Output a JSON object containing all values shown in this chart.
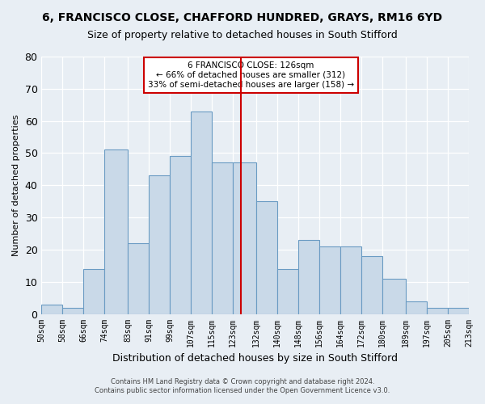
{
  "title": "6, FRANCISCO CLOSE, CHAFFORD HUNDRED, GRAYS, RM16 6YD",
  "subtitle": "Size of property relative to detached houses in South Stifford",
  "xlabel": "Distribution of detached houses by size in South Stifford",
  "ylabel": "Number of detached properties",
  "footer_line1": "Contains HM Land Registry data © Crown copyright and database right 2024.",
  "footer_line2": "Contains public sector information licensed under the Open Government Licence v3.0.",
  "annotation_line1": "6 FRANCISCO CLOSE: 126sqm",
  "annotation_line2": "← 66% of detached houses are smaller (312)",
  "annotation_line3": "33% of semi-detached houses are larger (158) →",
  "property_size": 126,
  "bin_edges": [
    50,
    58,
    66,
    74,
    83,
    91,
    99,
    107,
    115,
    123,
    132,
    140,
    148,
    156,
    164,
    172,
    180,
    189,
    197,
    205,
    213
  ],
  "bin_labels": [
    "50sqm",
    "58sqm",
    "66sqm",
    "74sqm",
    "83sqm",
    "91sqm",
    "99sqm",
    "107sqm",
    "115sqm",
    "123sqm",
    "132sqm",
    "140sqm",
    "148sqm",
    "156sqm",
    "164sqm",
    "172sqm",
    "180sqm",
    "189sqm",
    "197sqm",
    "205sqm",
    "213sqm"
  ],
  "counts": [
    3,
    2,
    14,
    51,
    22,
    43,
    49,
    63,
    47,
    47,
    35,
    14,
    23,
    21,
    21,
    18,
    11,
    4,
    2,
    2
  ],
  "bar_facecolor": "#c9d9e8",
  "bar_edgecolor": "#6a9bc3",
  "vline_color": "#cc0000",
  "vline_x": 126,
  "background_color": "#e8eef4",
  "grid_color": "#ffffff",
  "ylim": [
    0,
    80
  ],
  "yticks": [
    0,
    10,
    20,
    30,
    40,
    50,
    60,
    70,
    80
  ]
}
